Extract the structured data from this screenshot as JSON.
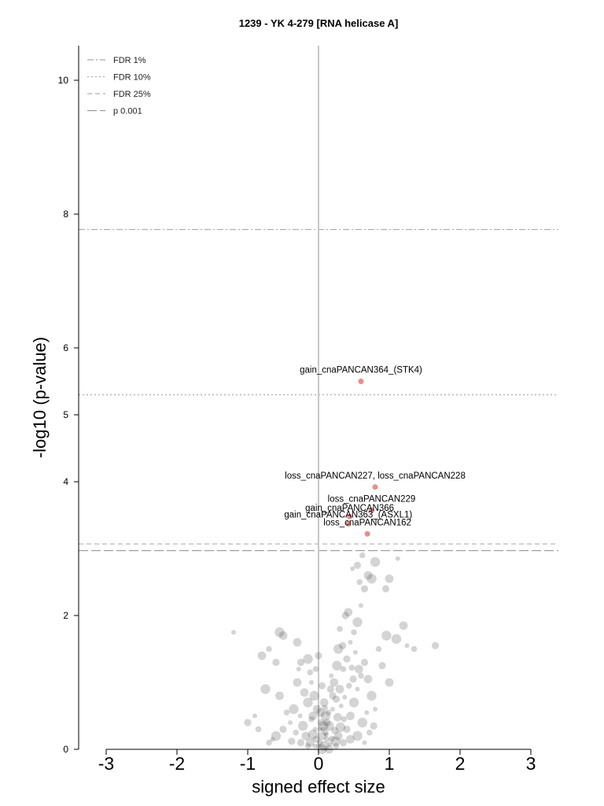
{
  "chart_data": {
    "type": "scatter",
    "title": "1239 - YK 4-279 [RNA helicase A]",
    "xlabel": "signed effect size",
    "ylabel": "-log10 (p-value)",
    "xlim": [
      -3,
      3
    ],
    "ylim": [
      0,
      10
    ],
    "xticks": [
      "-3",
      "-2",
      "-1",
      "0",
      "1",
      "2",
      "3"
    ],
    "yticks": [
      "0",
      "2",
      "4",
      "5",
      "6",
      "8",
      "10"
    ],
    "grid": false,
    "legend_position": "top-left",
    "thresholds": [
      {
        "name": "FDR 1%",
        "value": 7.77,
        "style": "dashdot",
        "color": "#aaaaaa"
      },
      {
        "name": "FDR 10%",
        "value": 5.3,
        "style": "dotted",
        "color": "#aaaaaa"
      },
      {
        "name": "FDR 25%",
        "value": 3.07,
        "style": "dashed",
        "color": "#b0b0b0"
      },
      {
        "name": "p 0.001",
        "value": 2.97,
        "style": "longdash",
        "color": "#999999"
      }
    ],
    "highlighted": [
      {
        "label": "gain_cnaPANCAN364_(STK4)",
        "x": 0.6,
        "y": 5.5
      },
      {
        "label": "loss_cnaPANCAN227, loss_cnaPANCAN228",
        "x": 0.8,
        "y": 3.92
      },
      {
        "label": "loss_cnaPANCAN229",
        "x": 0.75,
        "y": 3.57
      },
      {
        "label": "gain_cnaPANCAN366",
        "x": 0.44,
        "y": 3.48
      },
      {
        "label": "gain_cnaPANCAN363_(ASXL1)",
        "x": 0.42,
        "y": 3.37
      },
      {
        "label": "loss_cnaPANCAN162",
        "x": 0.69,
        "y": 3.22
      }
    ],
    "background_points": [
      [
        0.0,
        0.05
      ],
      [
        0.02,
        0.1
      ],
      [
        -0.03,
        0.15
      ],
      [
        0.05,
        0.2
      ],
      [
        0.08,
        0.05
      ],
      [
        -0.05,
        0.3
      ],
      [
        0.1,
        0.25
      ],
      [
        0.12,
        0.4
      ],
      [
        -0.08,
        0.5
      ],
      [
        0.15,
        0.35
      ],
      [
        0.2,
        0.6
      ],
      [
        -0.1,
        0.45
      ],
      [
        0.25,
        0.75
      ],
      [
        0.3,
        0.9
      ],
      [
        -0.15,
        0.7
      ],
      [
        0.18,
        1.1
      ],
      [
        0.35,
        1.2
      ],
      [
        0.4,
        1.35
      ],
      [
        -0.2,
        0.85
      ],
      [
        0.28,
        1.5
      ],
      [
        0.45,
        1.6
      ],
      [
        0.5,
        1.75
      ],
      [
        0.38,
        2.0
      ],
      [
        0.42,
        2.05
      ],
      [
        0.55,
        1.9
      ],
      [
        0.6,
        2.15
      ],
      [
        0.3,
        1.8
      ],
      [
        0.65,
        2.4
      ],
      [
        0.7,
        2.6
      ],
      [
        0.75,
        2.55
      ],
      [
        0.48,
        2.7
      ],
      [
        0.58,
        2.5
      ],
      [
        0.95,
        2.4
      ],
      [
        1.0,
        2.55
      ],
      [
        0.8,
        2.8
      ],
      [
        1.12,
        2.85
      ],
      [
        0.62,
        2.9
      ],
      [
        0.55,
        2.75
      ],
      [
        -0.3,
        1.0
      ],
      [
        -0.35,
        0.6
      ],
      [
        -0.4,
        0.4
      ],
      [
        -0.45,
        0.55
      ],
      [
        -0.5,
        0.3
      ],
      [
        -0.55,
        0.8
      ],
      [
        -0.6,
        0.2
      ],
      [
        -0.65,
        0.15
      ],
      [
        -0.7,
        0.1
      ],
      [
        -0.25,
        1.3
      ],
      [
        -0.5,
        1.7
      ],
      [
        -0.55,
        1.75
      ],
      [
        -1.2,
        1.75
      ],
      [
        -0.7,
        1.5
      ],
      [
        -0.6,
        1.3
      ],
      [
        -0.8,
        1.4
      ],
      [
        -0.75,
        0.9
      ],
      [
        -0.9,
        0.5
      ],
      [
        -0.85,
        0.3
      ],
      [
        -1.0,
        0.4
      ],
      [
        -0.3,
        1.6
      ],
      [
        -0.15,
        1.35
      ],
      [
        -0.28,
        1.2
      ],
      [
        -0.12,
        1.15
      ],
      [
        0.05,
        0.95
      ],
      [
        0.08,
        0.7
      ],
      [
        0.1,
        0.5
      ],
      [
        0.06,
        0.3
      ],
      [
        0.14,
        0.55
      ],
      [
        0.2,
        0.8
      ],
      [
        0.22,
        1.0
      ],
      [
        0.26,
        1.25
      ],
      [
        0.32,
        0.65
      ],
      [
        0.36,
        0.45
      ],
      [
        0.4,
        0.3
      ],
      [
        0.45,
        0.5
      ],
      [
        0.5,
        0.7
      ],
      [
        0.55,
        0.9
      ],
      [
        0.6,
        1.1
      ],
      [
        0.65,
        1.3
      ],
      [
        0.7,
        1.05
      ],
      [
        0.75,
        0.8
      ],
      [
        0.8,
        0.6
      ],
      [
        0.85,
        1.5
      ],
      [
        0.9,
        1.25
      ],
      [
        1.0,
        1.0
      ],
      [
        1.1,
        1.65
      ],
      [
        1.25,
        1.55
      ],
      [
        1.35,
        1.5
      ],
      [
        1.65,
        1.55
      ],
      [
        1.2,
        1.85
      ],
      [
        0.96,
        1.7
      ],
      [
        0.52,
        1.45
      ],
      [
        0.47,
        1.22
      ],
      [
        0.34,
        1.55
      ],
      [
        0.28,
        0.2
      ],
      [
        0.24,
        0.12
      ],
      [
        0.16,
        0.08
      ],
      [
        0.12,
        0.15
      ],
      [
        0.04,
        0.4
      ],
      [
        -0.02,
        0.6
      ],
      [
        -0.06,
        0.8
      ],
      [
        -0.1,
        1.0
      ],
      [
        -0.04,
        1.2
      ],
      [
        0.0,
        1.4
      ],
      [
        0.03,
        0.55
      ],
      [
        0.07,
        0.35
      ],
      [
        0.11,
        0.22
      ],
      [
        0.19,
        0.16
      ],
      [
        0.23,
        0.28
      ],
      [
        -0.18,
        0.2
      ],
      [
        -0.22,
        0.35
      ],
      [
        -0.26,
        0.5
      ],
      [
        -0.32,
        0.25
      ],
      [
        -0.38,
        0.12
      ],
      [
        -0.12,
        0.1
      ],
      [
        -0.08,
        0.22
      ],
      [
        0.02,
        0.3
      ],
      [
        0.09,
        0.62
      ],
      [
        0.17,
        0.9
      ],
      [
        0.27,
        0.48
      ],
      [
        0.31,
        0.33
      ],
      [
        0.37,
        0.78
      ],
      [
        0.43,
        0.95
      ],
      [
        0.49,
        1.05
      ],
      [
        0.57,
        1.2
      ],
      [
        0.62,
        0.4
      ],
      [
        0.68,
        0.55
      ],
      [
        0.72,
        0.25
      ],
      [
        0.78,
        0.35
      ],
      [
        0.15,
        0.0
      ],
      [
        0.05,
        0.0
      ],
      [
        -0.05,
        0.05
      ],
      [
        0.25,
        0.05
      ],
      [
        0.35,
        0.1
      ],
      [
        0.45,
        0.15
      ],
      [
        0.55,
        0.2
      ],
      [
        0.65,
        0.1
      ],
      [
        -0.15,
        0.05
      ],
      [
        -0.25,
        0.1
      ]
    ]
  }
}
